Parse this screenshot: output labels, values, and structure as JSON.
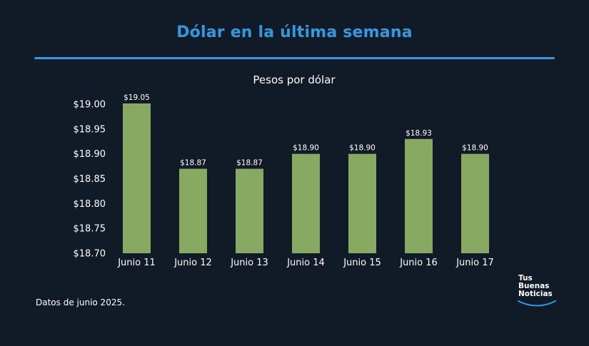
{
  "header": {
    "title": "Dólar en la última semana"
  },
  "footer": {
    "note": "Datos de junio 2025."
  },
  "logo": {
    "line1": "Tus",
    "line2": "Buenas",
    "line3": "Noticias"
  },
  "colors": {
    "background": "#111a27",
    "accent": "#2f9bde",
    "bar": "#88a962",
    "text": "#ffffff"
  },
  "chart_data": {
    "type": "bar",
    "title": "Pesos por dólar",
    "xlabel": "",
    "ylabel": "",
    "categories": [
      "Junio 11",
      "Junio 12",
      "Junio 13",
      "Junio 14",
      "Junio 15",
      "Junio 16",
      "Junio 17"
    ],
    "values": [
      19.05,
      18.87,
      18.87,
      18.9,
      18.9,
      18.93,
      18.9
    ],
    "data_labels": [
      "$19.05",
      "$18.87",
      "$18.87",
      "$18.90",
      "$18.90",
      "$18.93",
      "$18.90"
    ],
    "ylim": [
      18.7,
      19.0
    ],
    "yticks": [
      18.7,
      18.75,
      18.8,
      18.85,
      18.9,
      18.95,
      19.0
    ],
    "ytick_labels": [
      "$18.70",
      "$18.75",
      "$18.80",
      "$18.85",
      "$18.90",
      "$18.95",
      "$19.00"
    ],
    "grid": false,
    "legend": "none"
  }
}
